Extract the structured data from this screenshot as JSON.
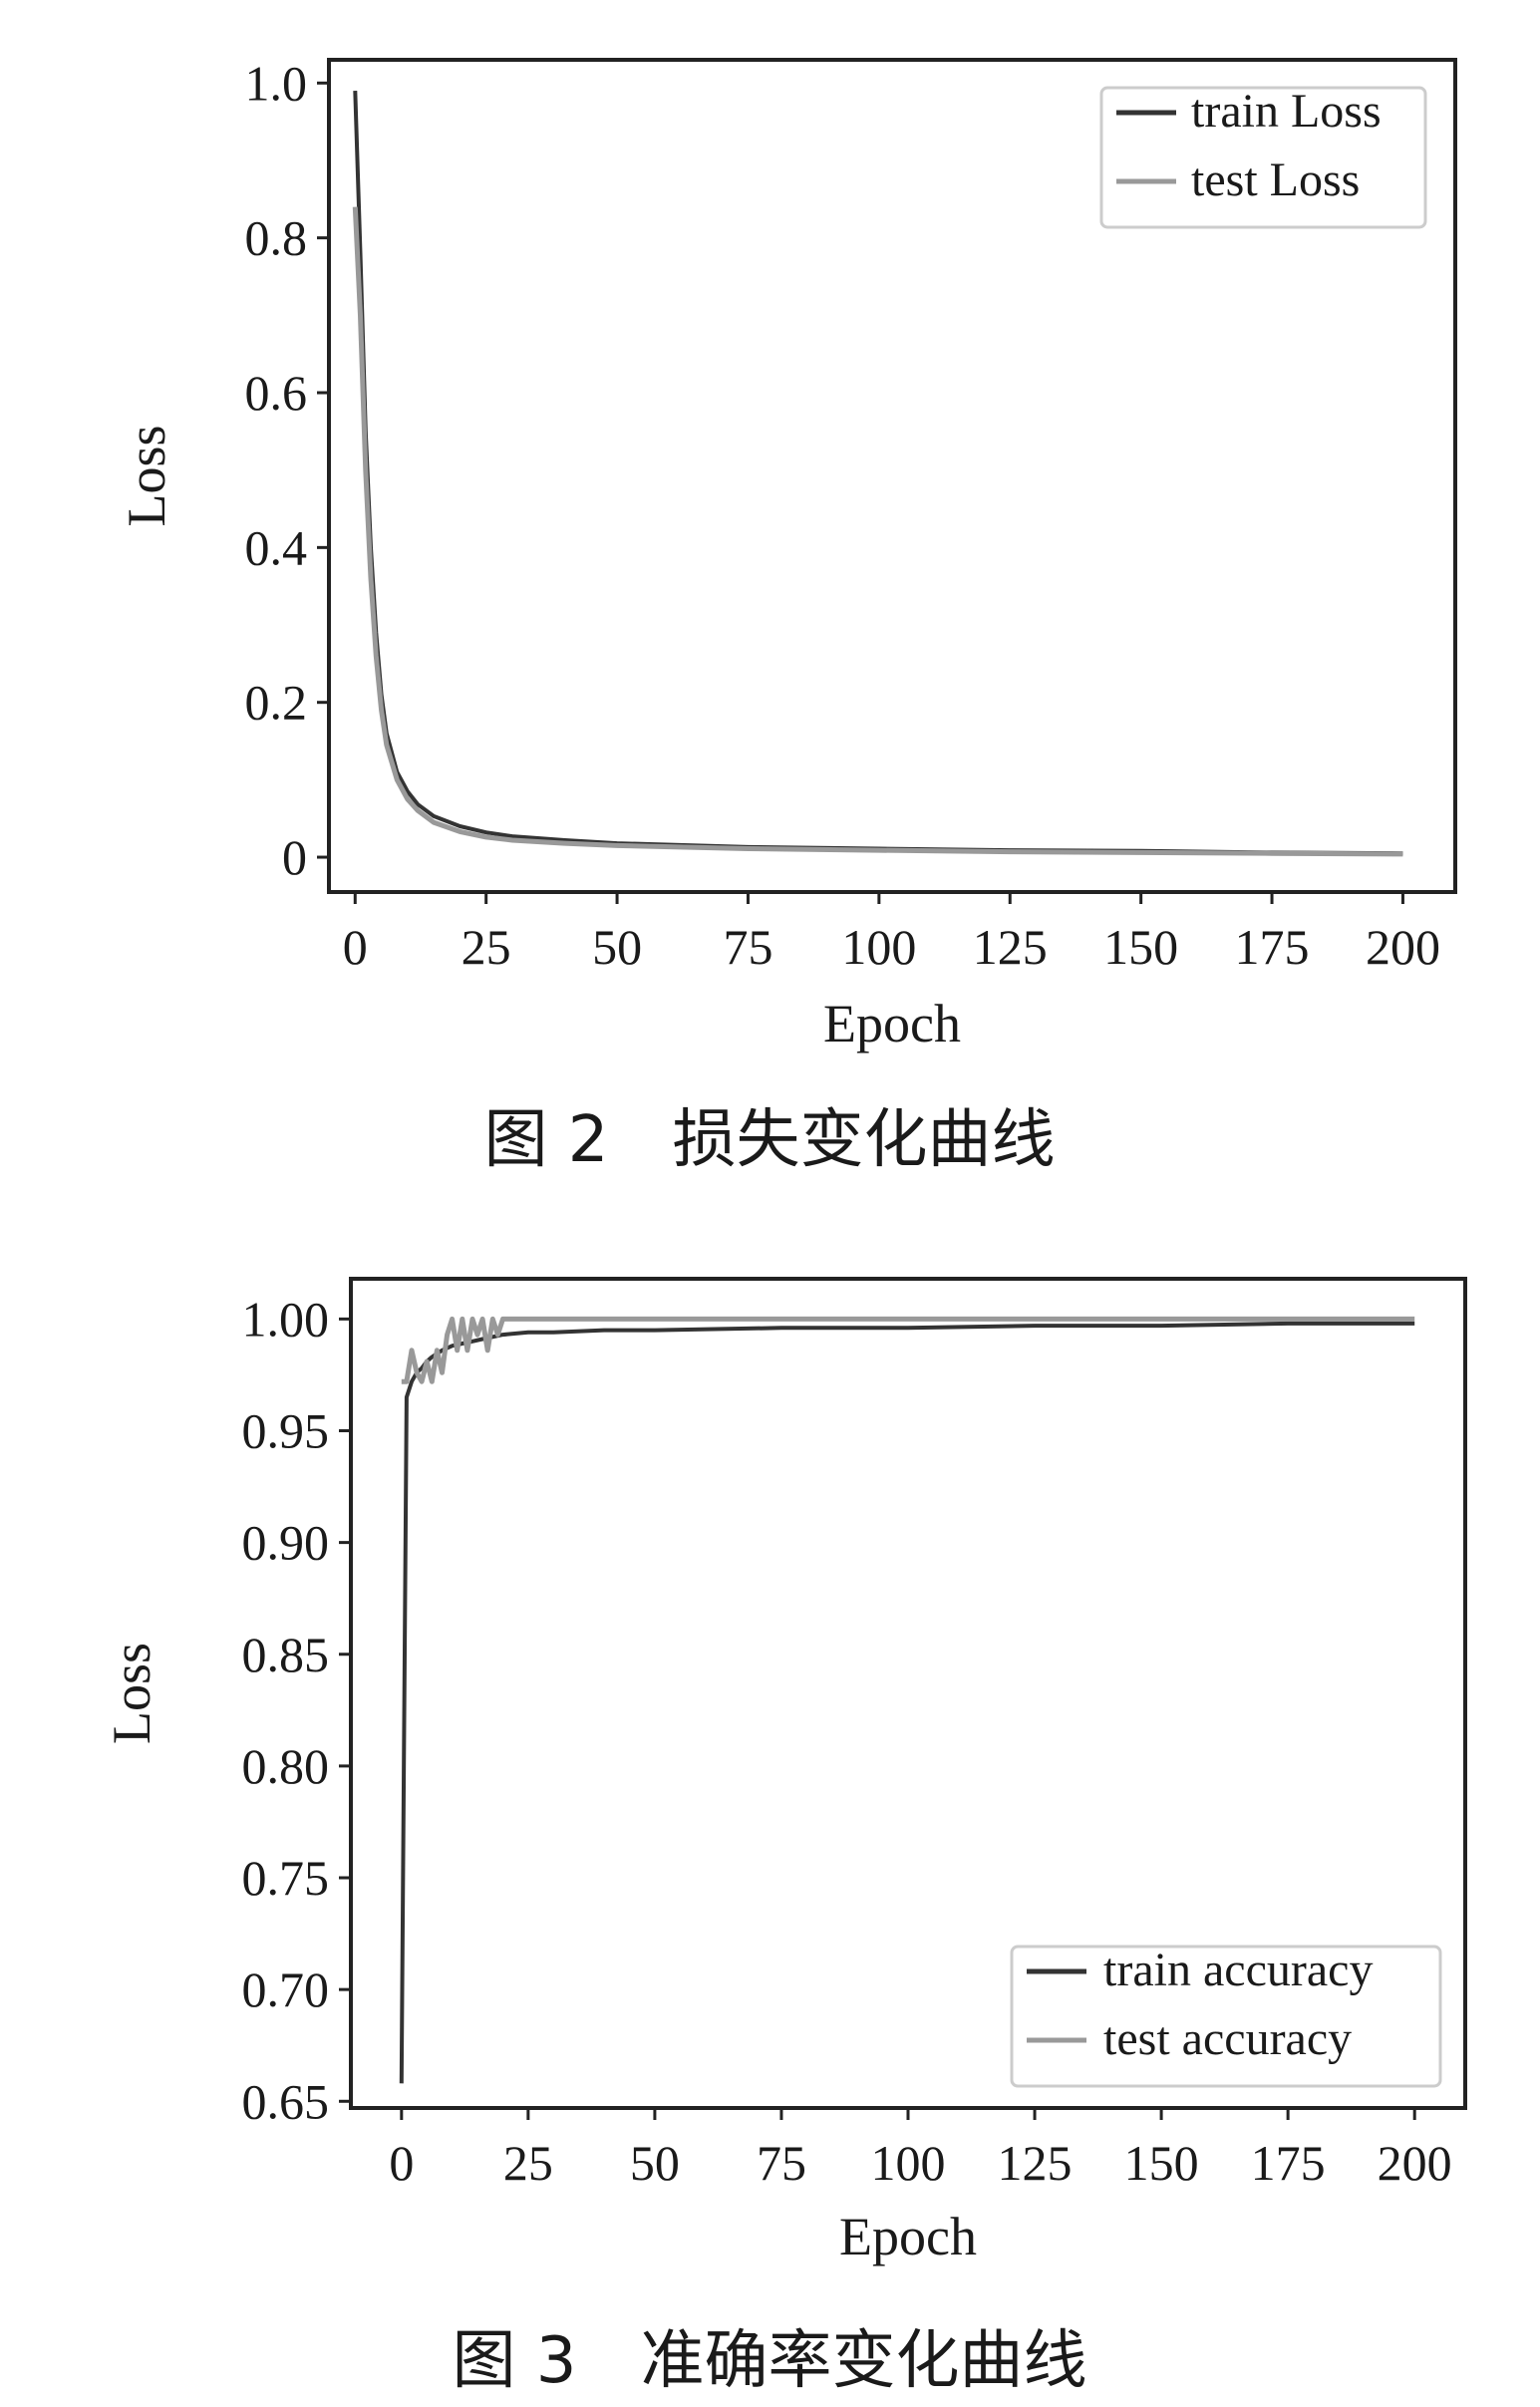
{
  "chart_data": [
    {
      "type": "line",
      "caption": "图 2　损失变化曲线",
      "xlabel": "Epoch",
      "ylabel": "Loss",
      "xlim": [
        -5,
        210
      ],
      "ylim": [
        -0.045,
        1.03
      ],
      "xticks": [
        0,
        25,
        50,
        75,
        100,
        125,
        150,
        175,
        200
      ],
      "yticks": [
        0,
        0.2,
        0.4,
        0.6,
        0.8,
        1.0
      ],
      "ytick_labels": [
        "0",
        "0.2",
        "0.4",
        "0.6",
        "0.8",
        "1.0"
      ],
      "legend_position": "top-right",
      "series": [
        {
          "name": "train Loss",
          "color": "#333333",
          "x": [
            0,
            1,
            2,
            3,
            4,
            5,
            6,
            8,
            10,
            12,
            15,
            20,
            25,
            30,
            40,
            50,
            75,
            100,
            125,
            150,
            175,
            200
          ],
          "y": [
            0.99,
            0.78,
            0.55,
            0.4,
            0.29,
            0.21,
            0.16,
            0.11,
            0.085,
            0.068,
            0.053,
            0.04,
            0.032,
            0.027,
            0.022,
            0.018,
            0.013,
            0.011,
            0.009,
            0.008,
            0.006,
            0.005
          ]
        },
        {
          "name": "test Loss",
          "color": "#999999",
          "x": [
            0,
            1,
            2,
            3,
            4,
            5,
            6,
            8,
            10,
            12,
            15,
            20,
            25,
            30,
            40,
            50,
            75,
            100,
            125,
            150,
            175,
            200
          ],
          "y": [
            0.84,
            0.7,
            0.5,
            0.36,
            0.26,
            0.19,
            0.145,
            0.1,
            0.075,
            0.06,
            0.045,
            0.033,
            0.026,
            0.022,
            0.018,
            0.015,
            0.011,
            0.009,
            0.007,
            0.006,
            0.005,
            0.004
          ]
        }
      ]
    },
    {
      "type": "line",
      "caption": "图 3　准确率变化曲线",
      "xlabel": "Epoch",
      "ylabel": "Loss",
      "xlim": [
        -10,
        210
      ],
      "ylim": [
        0.647,
        1.018
      ],
      "xticks": [
        0,
        25,
        50,
        75,
        100,
        125,
        150,
        175,
        200
      ],
      "yticks": [
        0.65,
        0.7,
        0.75,
        0.8,
        0.85,
        0.9,
        0.95,
        1.0
      ],
      "ytick_labels": [
        "0.65",
        "0.70",
        "0.75",
        "0.80",
        "0.85",
        "0.90",
        "0.95",
        "1.00"
      ],
      "legend_position": "bottom-right",
      "series": [
        {
          "name": "train accuracy",
          "color": "#333333",
          "x": [
            0,
            1,
            2,
            3,
            4,
            5,
            6,
            8,
            10,
            12,
            14,
            16,
            18,
            20,
            25,
            30,
            40,
            50,
            75,
            100,
            125,
            150,
            175,
            190,
            200
          ],
          "y": [
            0.658,
            0.965,
            0.972,
            0.976,
            0.978,
            0.981,
            0.983,
            0.986,
            0.988,
            0.989,
            0.99,
            0.991,
            0.992,
            0.993,
            0.994,
            0.994,
            0.995,
            0.995,
            0.996,
            0.996,
            0.997,
            0.997,
            0.998,
            0.998,
            0.998
          ]
        },
        {
          "name": "test accuracy",
          "color": "#999999",
          "x": [
            0,
            1,
            2,
            3,
            4,
            5,
            6,
            7,
            8,
            9,
            10,
            11,
            12,
            13,
            14,
            15,
            16,
            17,
            18,
            19,
            20,
            50,
            100,
            150,
            200
          ],
          "y": [
            0.972,
            0.972,
            0.986,
            0.976,
            0.972,
            0.981,
            0.972,
            0.986,
            0.976,
            0.993,
            1.0,
            0.986,
            1.0,
            0.986,
            1.0,
            0.993,
            1.0,
            0.986,
            1.0,
            0.993,
            1.0,
            1.0,
            1.0,
            1.0,
            1.0
          ]
        }
      ]
    }
  ]
}
